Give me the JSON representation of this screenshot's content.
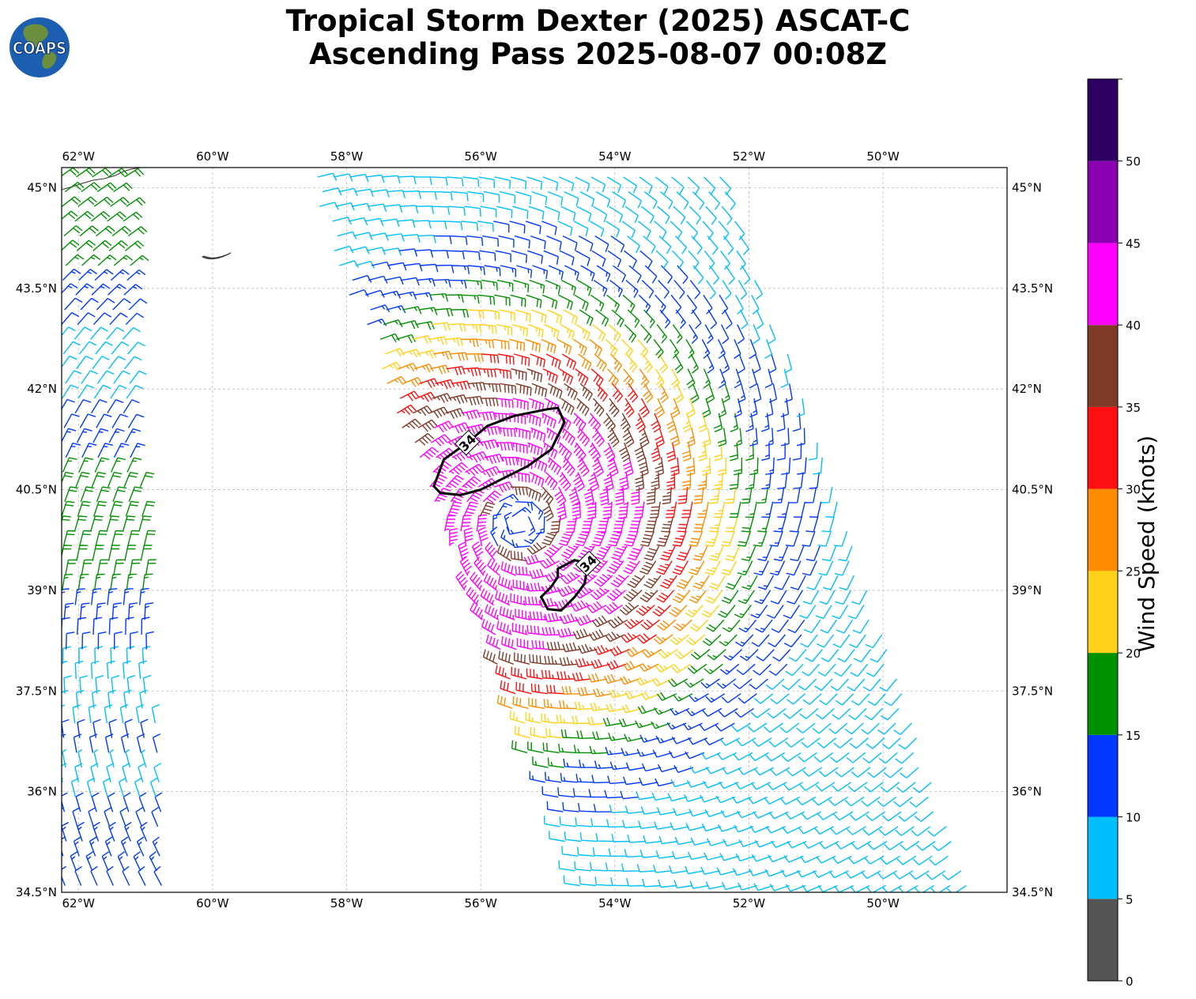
{
  "title": {
    "line1": "Tropical Storm Dexter (2025) ASCAT-C",
    "line2": "Ascending Pass 2025-08-07 00:08Z"
  },
  "logo": {
    "text": "COAPS",
    "icon": "globe-icon"
  },
  "map": {
    "lon_range": [
      -62.25,
      -48.15
    ],
    "lat_range": [
      34.5,
      45.3
    ],
    "lon_ticks": [
      "62°W",
      "60°W",
      "58°W",
      "56°W",
      "54°W",
      "52°W",
      "50°W"
    ],
    "lon_tick_values": [
      -62,
      -60,
      -58,
      -56,
      -54,
      -52,
      -50
    ],
    "lat_ticks": [
      "45°N",
      "43.5°N",
      "42°N",
      "40.5°N",
      "39°N",
      "37.5°N",
      "36°N",
      "34.5°N"
    ],
    "lat_tick_values": [
      45,
      43.5,
      42,
      40.5,
      39,
      37.5,
      36,
      34.5
    ],
    "storm_center": {
      "lon": -55.4,
      "lat": 40.0
    },
    "contour_label": "34",
    "contours": [
      {
        "label": "34",
        "points": [
          [
            -56.7,
            40.55
          ],
          [
            -56.55,
            40.95
          ],
          [
            -56.2,
            41.2
          ],
          [
            -55.9,
            41.45
          ],
          [
            -55.5,
            41.6
          ],
          [
            -55.0,
            41.7
          ],
          [
            -54.85,
            41.72
          ],
          [
            -54.75,
            41.5
          ],
          [
            -54.95,
            41.1
          ],
          [
            -55.3,
            40.85
          ],
          [
            -55.7,
            40.65
          ],
          [
            -56.0,
            40.5
          ],
          [
            -56.3,
            40.42
          ],
          [
            -56.6,
            40.45
          ]
        ]
      },
      {
        "label": "34",
        "points": [
          [
            -54.85,
            39.32
          ],
          [
            -54.6,
            39.45
          ],
          [
            -54.4,
            39.4
          ],
          [
            -54.45,
            39.1
          ],
          [
            -54.6,
            38.9
          ],
          [
            -54.8,
            38.7
          ],
          [
            -55.0,
            38.72
          ],
          [
            -55.1,
            38.9
          ],
          [
            -54.95,
            39.05
          ],
          [
            -54.85,
            39.2
          ]
        ]
      }
    ]
  },
  "colorbar": {
    "label": "Wind Speed (knots)",
    "ticks": [
      "0",
      "5",
      "10",
      "15",
      "20",
      "25",
      "30",
      "35",
      "40",
      "45",
      "50"
    ],
    "tick_values": [
      0,
      5,
      10,
      15,
      20,
      25,
      30,
      35,
      40,
      45,
      50
    ],
    "max": 55,
    "bins": [
      {
        "from": 0,
        "to": 5,
        "color": "#555555"
      },
      {
        "from": 5,
        "to": 10,
        "color": "#00bfff"
      },
      {
        "from": 10,
        "to": 15,
        "color": "#0038ff"
      },
      {
        "from": 15,
        "to": 20,
        "color": "#009100"
      },
      {
        "from": 20,
        "to": 25,
        "color": "#ffd21a"
      },
      {
        "from": 25,
        "to": 30,
        "color": "#ff8c00"
      },
      {
        "from": 30,
        "to": 35,
        "color": "#ff1010"
      },
      {
        "from": 35,
        "to": 40,
        "color": "#7f3a28"
      },
      {
        "from": 40,
        "to": 45,
        "color": "#ff00ff"
      },
      {
        "from": 45,
        "to": 50,
        "color": "#8a00b0"
      },
      {
        "from": 50,
        "to": 55,
        "color": "#2d0062"
      }
    ]
  }
}
